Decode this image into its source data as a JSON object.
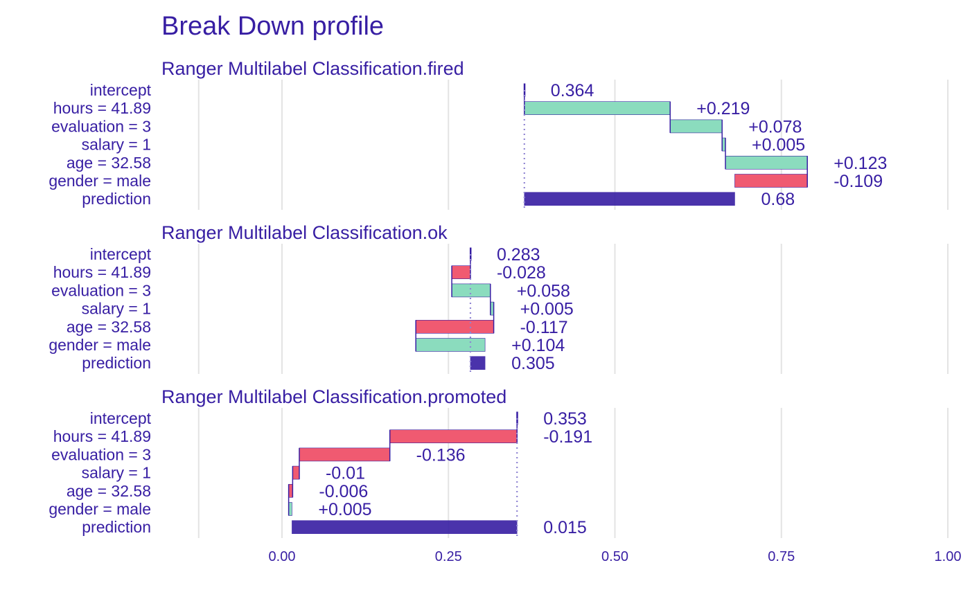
{
  "chart_data": {
    "type": "waterfall",
    "title": "Break Down profile",
    "xlim": [
      -0.25,
      1.0
    ],
    "x_ticks": [
      {
        "value": 0.0,
        "label": "0.00"
      },
      {
        "value": 0.25,
        "label": "0.25"
      },
      {
        "value": 0.5,
        "label": "0.50"
      },
      {
        "value": 0.75,
        "label": "0.75"
      },
      {
        "value": 1.0,
        "label": "1.00"
      }
    ],
    "grid": true,
    "colors": {
      "text": "#371ea3",
      "positive": "#8bdcbe",
      "negative": "#f05a71",
      "prediction": "#371ea3",
      "grid": "#e3e3e3",
      "baseline": "#8f84d2"
    },
    "panels": [
      {
        "subtitle": "Ranger Multilabel Classification.fired",
        "baseline": 0.364,
        "rows": [
          {
            "variable": "intercept",
            "start": 0.364,
            "end": 0.364,
            "label": "0.364",
            "kind": "intercept"
          },
          {
            "variable": "hours = 41.89",
            "start": 0.364,
            "end": 0.583,
            "label": "+0.219",
            "kind": "positive"
          },
          {
            "variable": "evaluation = 3",
            "start": 0.583,
            "end": 0.661,
            "label": "+0.078",
            "kind": "positive"
          },
          {
            "variable": "salary = 1",
            "start": 0.661,
            "end": 0.666,
            "label": "+0.005",
            "kind": "positive"
          },
          {
            "variable": "age = 32.58",
            "start": 0.666,
            "end": 0.789,
            "label": "+0.123",
            "kind": "positive"
          },
          {
            "variable": "gender = male",
            "start": 0.789,
            "end": 0.68,
            "label": "-0.109",
            "kind": "negative"
          },
          {
            "variable": "prediction",
            "start": 0.364,
            "end": 0.68,
            "label": "0.68",
            "kind": "prediction"
          }
        ]
      },
      {
        "subtitle": "Ranger Multilabel Classification.ok",
        "baseline": 0.283,
        "rows": [
          {
            "variable": "intercept",
            "start": 0.283,
            "end": 0.283,
            "label": "0.283",
            "kind": "intercept"
          },
          {
            "variable": "hours = 41.89",
            "start": 0.283,
            "end": 0.255,
            "label": "-0.028",
            "kind": "negative"
          },
          {
            "variable": "evaluation = 3",
            "start": 0.255,
            "end": 0.313,
            "label": "+0.058",
            "kind": "positive"
          },
          {
            "variable": "salary = 1",
            "start": 0.313,
            "end": 0.318,
            "label": "+0.005",
            "kind": "positive"
          },
          {
            "variable": "age = 32.58",
            "start": 0.318,
            "end": 0.201,
            "label": "-0.117",
            "kind": "negative"
          },
          {
            "variable": "gender = male",
            "start": 0.201,
            "end": 0.305,
            "label": "+0.104",
            "kind": "positive"
          },
          {
            "variable": "prediction",
            "start": 0.283,
            "end": 0.305,
            "label": "0.305",
            "kind": "prediction"
          }
        ]
      },
      {
        "subtitle": "Ranger Multilabel Classification.promoted",
        "baseline": 0.353,
        "rows": [
          {
            "variable": "intercept",
            "start": 0.353,
            "end": 0.353,
            "label": "0.353",
            "kind": "intercept"
          },
          {
            "variable": "hours = 41.89",
            "start": 0.353,
            "end": 0.162,
            "label": "-0.191",
            "kind": "negative"
          },
          {
            "variable": "evaluation = 3",
            "start": 0.162,
            "end": 0.026,
            "label": "-0.136",
            "kind": "negative"
          },
          {
            "variable": "salary = 1",
            "start": 0.026,
            "end": 0.016,
            "label": "-0.01",
            "kind": "negative"
          },
          {
            "variable": "age = 32.58",
            "start": 0.016,
            "end": 0.01,
            "label": "-0.006",
            "kind": "negative"
          },
          {
            "variable": "gender = male",
            "start": 0.01,
            "end": 0.015,
            "label": "+0.005",
            "kind": "positive"
          },
          {
            "variable": "prediction",
            "start": 0.353,
            "end": 0.015,
            "label": "0.015",
            "kind": "prediction"
          }
        ]
      }
    ]
  }
}
